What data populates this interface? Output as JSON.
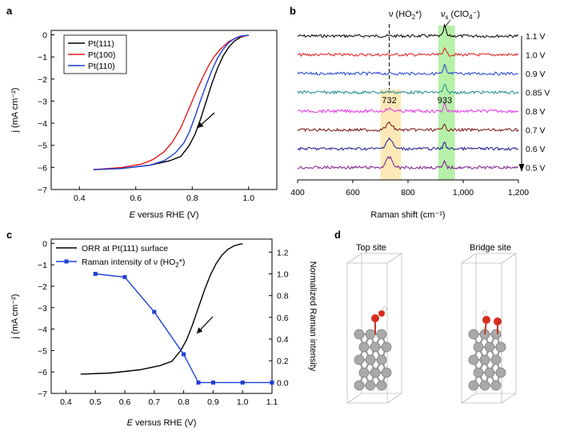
{
  "panels": {
    "a": {
      "label": "a"
    },
    "b": {
      "label": "b"
    },
    "c": {
      "label": "c"
    },
    "d": {
      "label": "d",
      "top_site_label": "Top site",
      "bridge_site_label": "Bridge site"
    }
  },
  "chart_data": [
    {
      "id": "a",
      "type": "line",
      "xlabel_italic": "E",
      "xlabel_rest": " versus RHE (V)",
      "ylabel": "j (mA cm⁻²)",
      "xlim": [
        0.3,
        1.1
      ],
      "ylim": [
        -7,
        0.2
      ],
      "xticks": [
        0.4,
        0.6,
        0.8,
        1.0
      ],
      "xtick_labels": [
        "0.4",
        "0.6",
        "0.8",
        "1.0"
      ],
      "yticks": [
        0,
        -1,
        -2,
        -3,
        -4,
        -5,
        -6,
        -7
      ],
      "ytick_labels": [
        "0",
        "−1",
        "−2",
        "−3",
        "−4",
        "−5",
        "−6",
        "−7"
      ],
      "legend_position": "top-left",
      "series": [
        {
          "name": "Pt(111)",
          "color": "#000000",
          "x": [
            0.45,
            0.55,
            0.65,
            0.72,
            0.76,
            0.79,
            0.81,
            0.83,
            0.85,
            0.87,
            0.89,
            0.91,
            0.93,
            0.95,
            0.97,
            0.99,
            1.0
          ],
          "y": [
            -6.1,
            -6.05,
            -5.9,
            -5.7,
            -5.5,
            -5.0,
            -4.5,
            -3.8,
            -3.0,
            -2.2,
            -1.5,
            -0.95,
            -0.55,
            -0.28,
            -0.12,
            -0.04,
            -0.02
          ]
        },
        {
          "name": "Pt(100)",
          "color": "#e41a1c",
          "x": [
            0.45,
            0.55,
            0.62,
            0.66,
            0.7,
            0.73,
            0.76,
            0.78,
            0.8,
            0.82,
            0.84,
            0.86,
            0.88,
            0.9,
            0.93,
            0.96,
            1.0
          ],
          "y": [
            -6.1,
            -6.0,
            -5.85,
            -5.65,
            -5.3,
            -4.85,
            -4.2,
            -3.6,
            -3.0,
            -2.4,
            -1.85,
            -1.35,
            -0.95,
            -0.65,
            -0.3,
            -0.12,
            -0.02
          ]
        },
        {
          "name": "Pt(110)",
          "color": "#1f3fd6",
          "x": [
            0.45,
            0.55,
            0.65,
            0.7,
            0.74,
            0.77,
            0.79,
            0.81,
            0.83,
            0.85,
            0.87,
            0.89,
            0.91,
            0.93,
            0.95,
            0.97,
            1.0
          ],
          "y": [
            -6.1,
            -6.05,
            -5.9,
            -5.7,
            -5.35,
            -4.9,
            -4.4,
            -3.7,
            -2.95,
            -2.25,
            -1.6,
            -1.05,
            -0.65,
            -0.35,
            -0.17,
            -0.06,
            -0.02
          ]
        }
      ]
    },
    {
      "id": "b",
      "type": "line",
      "xlabel": "Raman shift (cm⁻¹)",
      "xlim": [
        400,
        1200
      ],
      "xticks": [
        400,
        600,
        800,
        1000,
        1200
      ],
      "xtick_labels": [
        "400",
        "600",
        "800",
        "1,000",
        "1,200"
      ],
      "ho2_label_pre": "ν (HO",
      "ho2_label_post": "*)",
      "clo4_label_nu": "ν",
      "clo4_label_sub": "s",
      "clo4_label_rest": " (ClO",
      "clo4_label_end": "⁻)",
      "peak_labels": [
        "732",
        "933"
      ],
      "band_ho2": [
        700,
        775
      ],
      "band_clo4": [
        910,
        970
      ],
      "ho2_band_color": "#fde9b8",
      "clo4_band_color": "#b7f0a9",
      "series": [
        {
          "voltage": "1.1 V",
          "color": "#000000",
          "clo4_peak": 1.0,
          "ho2_peak": 0.0
        },
        {
          "voltage": "1.0 V",
          "color": "#e41a1c",
          "clo4_peak": 0.8,
          "ho2_peak": 0.0
        },
        {
          "voltage": "0.9 V",
          "color": "#1f3fd6",
          "clo4_peak": 0.8,
          "ho2_peak": 0.0
        },
        {
          "voltage": "0.85 V",
          "color": "#1a8a8a",
          "clo4_peak": 0.8,
          "ho2_peak": 0.05
        },
        {
          "voltage": "0.8 V",
          "color": "#e633e6",
          "clo4_peak": 0.8,
          "ho2_peak": 0.2
        },
        {
          "voltage": "0.7 V",
          "color": "#7a0f0f",
          "clo4_peak": 0.7,
          "ho2_peak": 0.6
        },
        {
          "voltage": "0.6 V",
          "color": "#1a1a8c",
          "clo4_peak": 0.7,
          "ho2_peak": 0.9
        },
        {
          "voltage": "0.5 V",
          "color": "#7a1a8c",
          "clo4_peak": 0.6,
          "ho2_peak": 0.9
        }
      ]
    },
    {
      "id": "c",
      "type": "line",
      "xlabel_italic": "E",
      "xlabel_rest": " versus RHE (V)",
      "ylabel_left": "j (mA cm⁻²)",
      "ylabel_right": "Normalized Raman intensity",
      "xlim": [
        0.35,
        1.1
      ],
      "ylim_left": [
        -7,
        0.2
      ],
      "ylim_right": [
        -0.1,
        1.32
      ],
      "xticks": [
        0.4,
        0.5,
        0.6,
        0.7,
        0.8,
        0.9,
        1.0,
        1.1
      ],
      "xtick_labels": [
        "0.4",
        "0.5",
        "0.6",
        "0.7",
        "0.8",
        "0.9",
        "1.0",
        "1.1"
      ],
      "yticks_left": [
        0,
        -1,
        -2,
        -3,
        -4,
        -5,
        -6,
        -7
      ],
      "ytick_labels_left": [
        "0",
        "−1",
        "−2",
        "−3",
        "−4",
        "−5",
        "−6",
        "−7"
      ],
      "yticks_right": [
        0.0,
        0.2,
        0.4,
        0.6,
        0.8,
        1.0,
        1.2
      ],
      "ytick_labels_right": [
        "0.0",
        "0.2",
        "0.4",
        "0.6",
        "0.8",
        "1.0",
        "1.2"
      ],
      "legend_position": "top-left",
      "series": [
        {
          "name": "ORR at Pt(111) surface",
          "color": "#000000",
          "axis": "left",
          "x": [
            0.45,
            0.55,
            0.65,
            0.72,
            0.76,
            0.79,
            0.81,
            0.83,
            0.85,
            0.87,
            0.89,
            0.91,
            0.93,
            0.95,
            0.97,
            0.99,
            1.0
          ],
          "y": [
            -6.1,
            -6.05,
            -5.9,
            -5.7,
            -5.5,
            -5.0,
            -4.5,
            -3.8,
            -3.0,
            -2.2,
            -1.5,
            -0.95,
            -0.55,
            -0.28,
            -0.12,
            -0.04,
            -0.02
          ]
        },
        {
          "name_pre": "Raman intensity of ν (HO",
          "name_post": "*)",
          "color": "#1f3fd6",
          "axis": "right",
          "marker": "square",
          "x": [
            0.5,
            0.6,
            0.7,
            0.8,
            0.85,
            0.9,
            1.0,
            1.1
          ],
          "y": [
            1.0,
            0.97,
            0.65,
            0.26,
            0.0,
            0.0,
            0.0,
            0.0
          ]
        }
      ]
    }
  ]
}
